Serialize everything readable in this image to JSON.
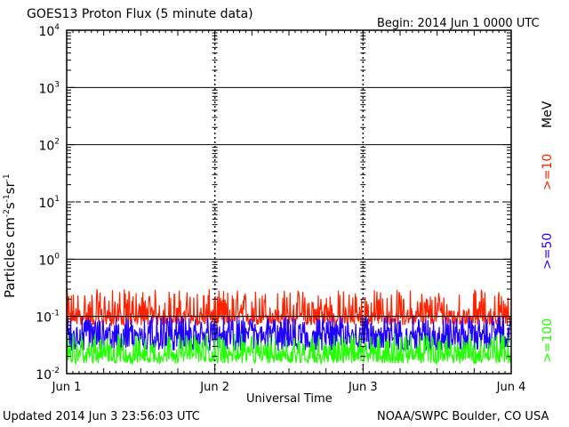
{
  "header": {
    "title": "GOES13 Proton Flux (5 minute data)",
    "begin": "Begin: 2014 Jun 1 0000 UTC"
  },
  "footer": {
    "updated": "Updated 2014 Jun  3 23:56:03 UTC",
    "source": "NOAA/SWPC Boulder, CO USA"
  },
  "colors": {
    "ge10": "#ff2200",
    "ge50": "#2200ff",
    "ge100": "#22ff00",
    "grid": "#000000",
    "background": "#ffffff"
  },
  "legend": {
    "ge10": ">=10",
    "ge50": ">=50",
    "ge100": ">=100",
    "unit": "MeV"
  },
  "chart_data": {
    "type": "line",
    "title": "GOES13 Proton Flux (5 minute data)",
    "xlabel": "Universal Time",
    "ylabel": "Particles cm-2s-1sr-1",
    "yscale": "log",
    "ylim": [
      0.01,
      10000
    ],
    "yticks": [
      {
        "value": 0.01,
        "base": "10",
        "exp": "-2"
      },
      {
        "value": 0.1,
        "base": "10",
        "exp": "-1"
      },
      {
        "value": 1,
        "base": "10",
        "exp": "0"
      },
      {
        "value": 10,
        "base": "10",
        "exp": "1"
      },
      {
        "value": 100,
        "base": "10",
        "exp": "2"
      },
      {
        "value": 1000,
        "base": "10",
        "exp": "3"
      },
      {
        "value": 10000,
        "base": "10",
        "exp": "4"
      }
    ],
    "xticks": [
      "Jun 1",
      "Jun 2",
      "Jun 3",
      "Jun 4"
    ],
    "xlim": [
      "2014-06-01 00:00",
      "2014-06-04 00:00"
    ],
    "thresholds": [
      {
        "value": 10,
        "style": "dashed"
      },
      {
        "value": 0.1,
        "style": "thin"
      }
    ],
    "series": [
      {
        "name": ">=10 MeV",
        "color": "#ff2200",
        "mean": 0.1,
        "range": [
          0.07,
          0.3
        ]
      },
      {
        "name": ">=50 MeV",
        "color": "#2200ff",
        "mean": 0.05,
        "range": [
          0.025,
          0.1
        ]
      },
      {
        "name": ">=100 MeV",
        "color": "#22ff00",
        "mean": 0.022,
        "range": [
          0.015,
          0.05
        ]
      }
    ]
  }
}
